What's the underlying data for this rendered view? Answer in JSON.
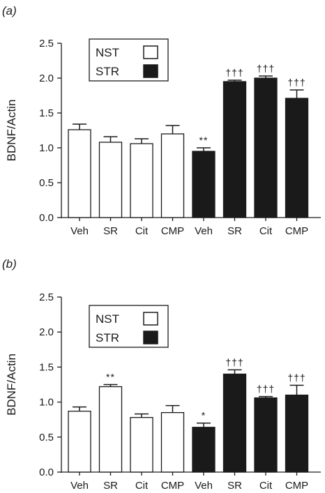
{
  "chart_data": [
    {
      "panel_label": "(a)",
      "type": "bar",
      "ylabel": "BDNF/Actin",
      "xlabel": "",
      "ylim": [
        0,
        2.5
      ],
      "yticks": [
        "0.0",
        "0.5",
        "1.0",
        "1.5",
        "2.0",
        "2.5"
      ],
      "categories": [
        "Veh",
        "SR",
        "Cit",
        "CMP",
        "Veh",
        "SR",
        "Cit",
        "CMP"
      ],
      "group": [
        "NST",
        "NST",
        "NST",
        "NST",
        "STR",
        "STR",
        "STR",
        "STR"
      ],
      "values": [
        1.26,
        1.08,
        1.06,
        1.2,
        0.95,
        1.95,
        2.0,
        1.71
      ],
      "errors": [
        0.08,
        0.08,
        0.07,
        0.12,
        0.05,
        0.02,
        0.03,
        0.12
      ],
      "annotations": [
        "",
        "",
        "",
        "",
        "**",
        "†††",
        "†††",
        "†††"
      ],
      "legend": {
        "position": "top-left",
        "entries": [
          {
            "label": "NST",
            "fill": "#ffffff"
          },
          {
            "label": "STR",
            "fill": "#1a1a1a"
          }
        ]
      },
      "grid": false
    },
    {
      "panel_label": "(b)",
      "type": "bar",
      "ylabel": "BDNF/Actin",
      "xlabel": "",
      "ylim": [
        0,
        2.5
      ],
      "yticks": [
        "0.0",
        "0.5",
        "1.0",
        "1.5",
        "2.0",
        "2.5"
      ],
      "categories": [
        "Veh",
        "SR",
        "Cit",
        "CMP",
        "Veh",
        "SR",
        "Cit",
        "CMP"
      ],
      "group": [
        "NST",
        "NST",
        "NST",
        "NST",
        "STR",
        "STR",
        "STR",
        "STR"
      ],
      "values": [
        0.87,
        1.22,
        0.78,
        0.85,
        0.64,
        1.4,
        1.06,
        1.1
      ],
      "errors": [
        0.06,
        0.03,
        0.05,
        0.1,
        0.06,
        0.06,
        0.02,
        0.14
      ],
      "annotations": [
        "",
        "**",
        "",
        "",
        "*",
        "†††",
        "†††",
        "†††"
      ],
      "legend": {
        "position": "top-left",
        "entries": [
          {
            "label": "NST",
            "fill": "#ffffff"
          },
          {
            "label": "STR",
            "fill": "#1a1a1a"
          }
        ]
      },
      "grid": false
    }
  ]
}
